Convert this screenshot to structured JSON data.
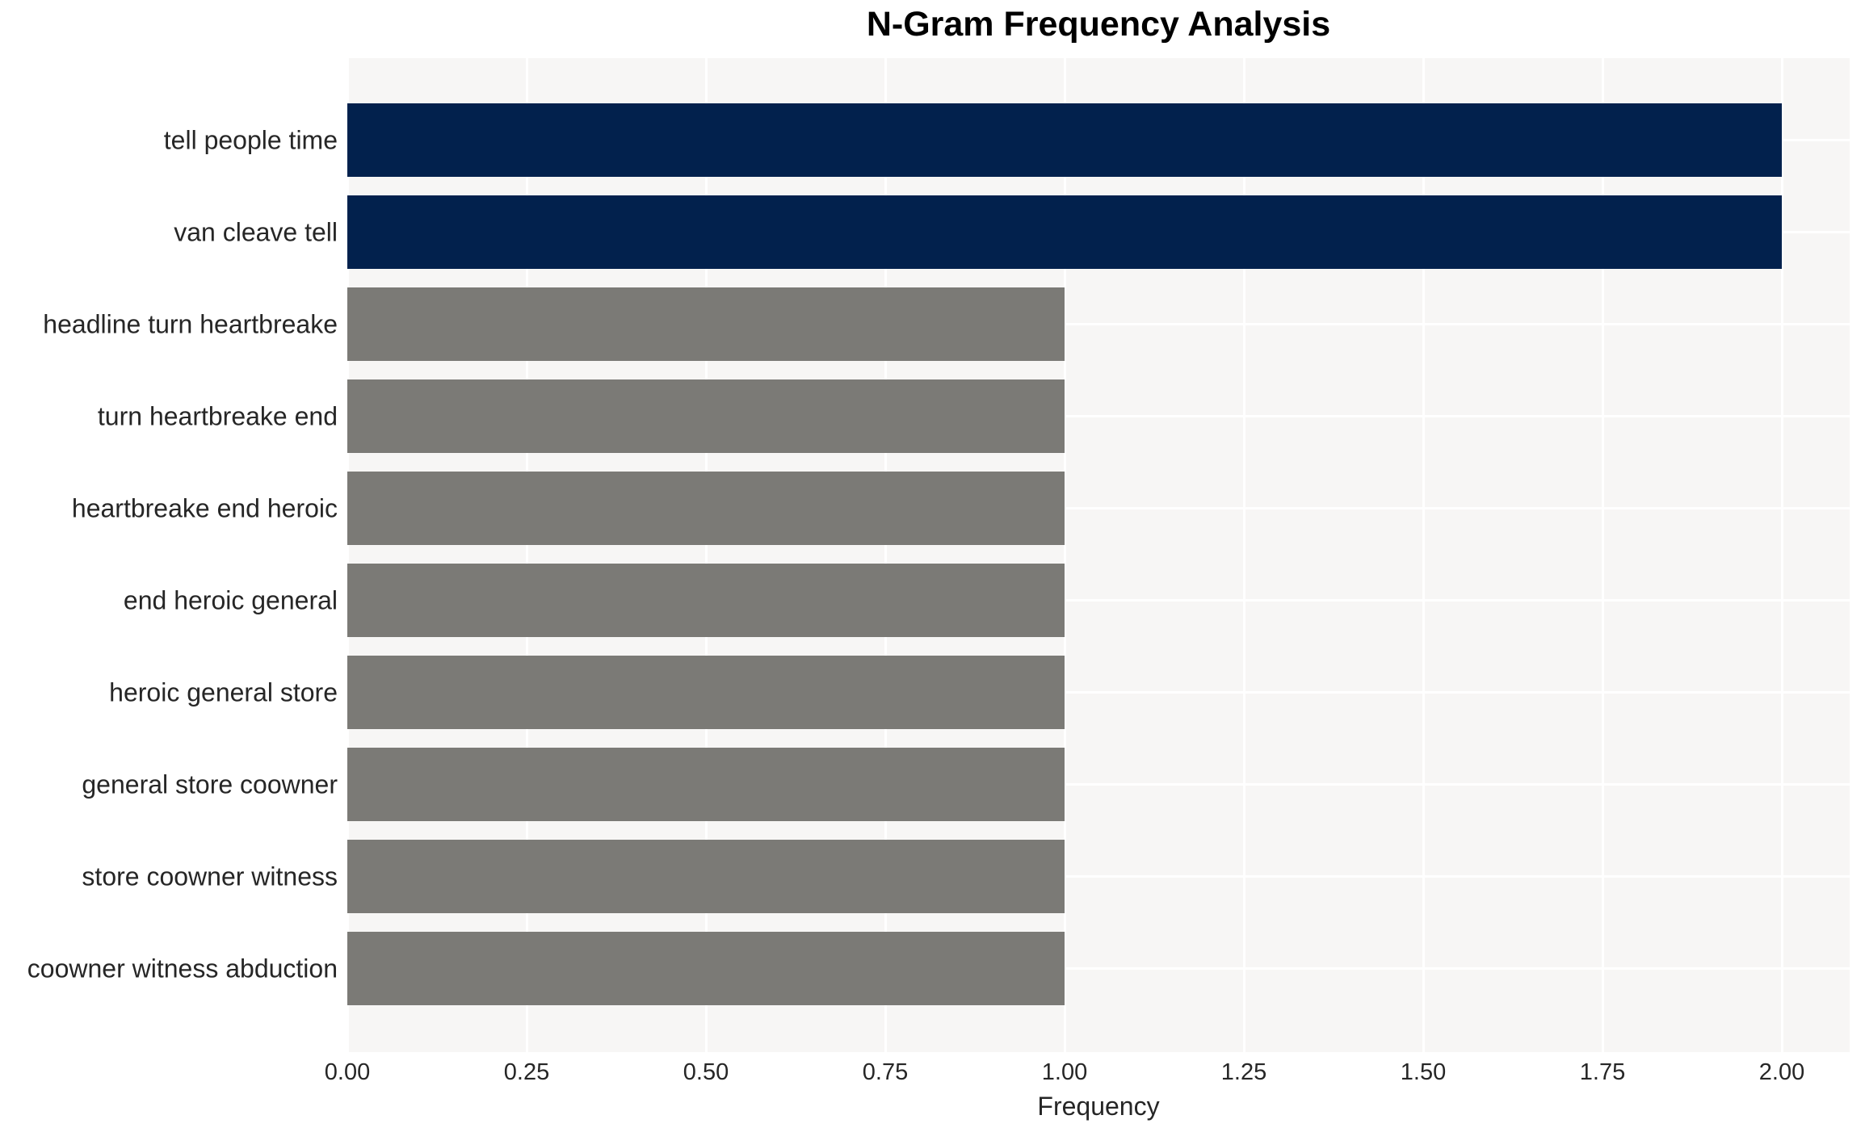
{
  "chart": {
    "title": "N-Gram Frequency Analysis",
    "xlabel": "Frequency"
  },
  "chart_data": {
    "type": "bar",
    "orientation": "horizontal",
    "title": "N-Gram Frequency Analysis",
    "xlabel": "Frequency",
    "ylabel": "",
    "categories": [
      "tell people time",
      "van cleave tell",
      "headline turn heartbreake",
      "turn heartbreake end",
      "heartbreake end heroic",
      "end heroic general",
      "heroic general store",
      "general store coowner",
      "store coowner witness",
      "coowner witness abduction"
    ],
    "values": [
      2,
      2,
      1,
      1,
      1,
      1,
      1,
      1,
      1,
      1
    ],
    "bar_colors": [
      "#02214d",
      "#02214d",
      "#7b7a76",
      "#7b7a76",
      "#7b7a76",
      "#7b7a76",
      "#7b7a76",
      "#7b7a76",
      "#7b7a76",
      "#7b7a76"
    ],
    "xticks": [
      0,
      0.25,
      0.5,
      0.75,
      1.0,
      1.25,
      1.5,
      1.75,
      2.0
    ],
    "xtick_labels": [
      "0.00",
      "0.25",
      "0.50",
      "0.75",
      "1.00",
      "1.25",
      "1.50",
      "1.75",
      "2.00"
    ],
    "xlim": [
      0,
      2.09
    ],
    "grid": true,
    "legend": false,
    "colors": {
      "highlight": "#02214d",
      "default": "#7b7a76",
      "plot_background": "#f7f6f5",
      "gridline": "#ffffff",
      "tick_text": "#262626",
      "title_text": "#000000"
    }
  }
}
